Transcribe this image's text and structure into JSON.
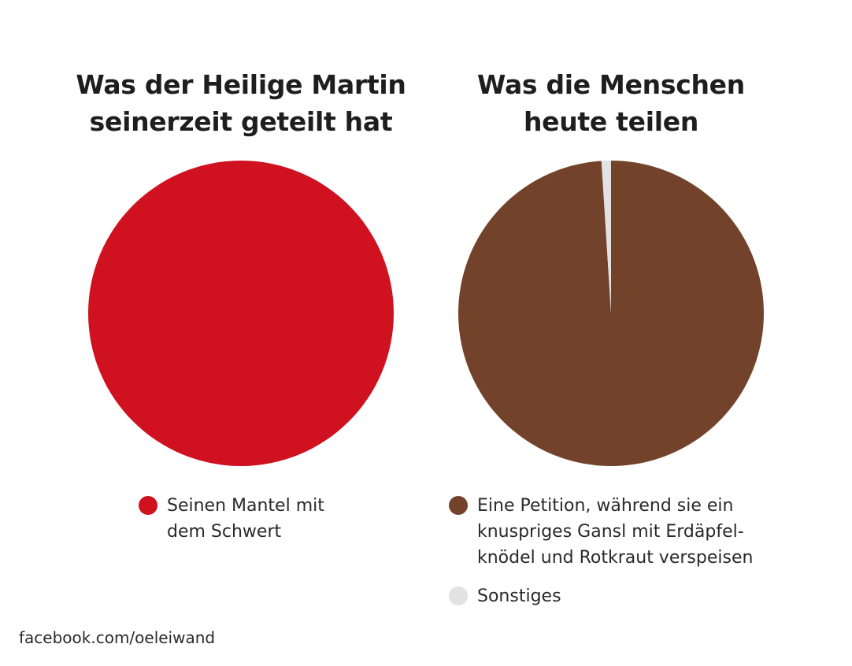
{
  "chart_data": [
    {
      "type": "pie",
      "title": [
        "Was der Heilige Martin",
        "seinerzeit geteilt hat"
      ],
      "slices": [
        {
          "label": [
            "Seinen Mantel mit",
            "dem Schwert"
          ],
          "value": 100,
          "color": "#cf1120"
        }
      ],
      "legend_position": "bottom"
    },
    {
      "type": "pie",
      "title": [
        "Was die Menschen",
        "heute teilen"
      ],
      "slices": [
        {
          "label": [
            "Eine Petition, während sie ein",
            "knuspriges Gansl mit Erdäpfel-",
            "knödel und Rotkraut verspeisen"
          ],
          "value": 99,
          "color": "#72432a"
        },
        {
          "label": [
            "Sonstiges"
          ],
          "value": 1,
          "color": "#e2e2e2"
        }
      ],
      "legend_position": "bottom"
    }
  ],
  "footer": {
    "source": "facebook.com/oeleiwand"
  }
}
